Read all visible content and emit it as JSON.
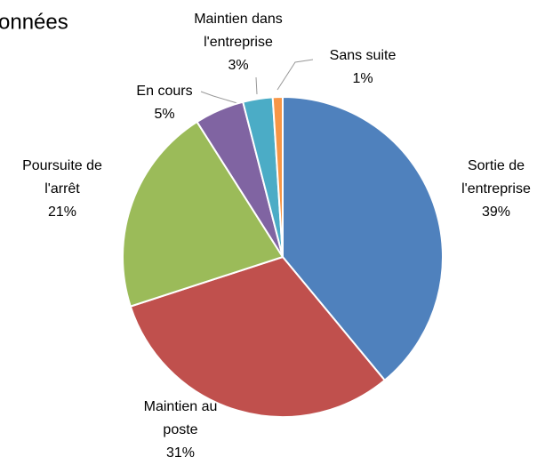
{
  "chart_data": {
    "type": "pie",
    "title": "onnées",
    "categories": [
      [
        "Sortie de",
        "l'entreprise"
      ],
      [
        "Maintien au",
        "poste"
      ],
      [
        "Poursuite de",
        "l'arrêt"
      ],
      [
        "En cours"
      ],
      [
        "Maintien dans",
        "l'entreprise"
      ],
      [
        "Sans suite"
      ]
    ],
    "values": [
      39,
      31,
      21,
      5,
      3,
      1
    ],
    "value_labels": [
      "39%",
      "31%",
      "21%",
      "5%",
      "3%",
      "1%"
    ],
    "colors": [
      "#4f81bd",
      "#c0504d",
      "#9bbb59",
      "#8064a2",
      "#4bacc6",
      "#f79646"
    ]
  }
}
